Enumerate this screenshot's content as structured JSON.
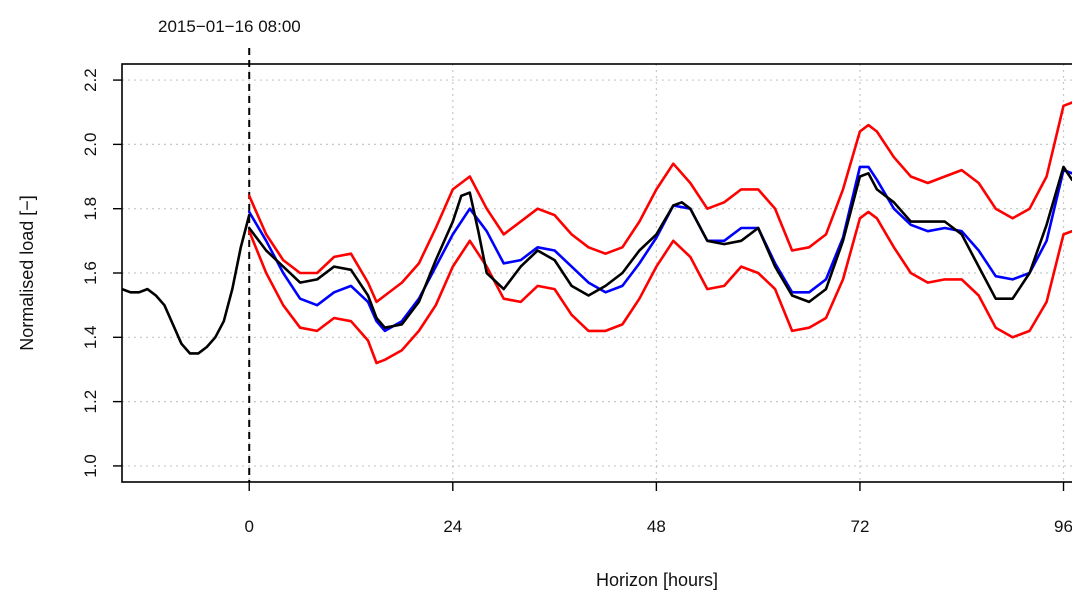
{
  "chart_data": {
    "type": "line",
    "title": "",
    "annotation": "2015−01−16 08:00",
    "xlabel": "Horizon [hours]",
    "ylabel": "Normalised load [−]",
    "xlim": [
      -15,
      97
    ],
    "ylim": [
      0.95,
      2.25
    ],
    "xticks": [
      0,
      24,
      48,
      72,
      96
    ],
    "yticks": [
      1.0,
      1.2,
      1.4,
      1.6,
      1.8,
      2.0,
      2.2
    ],
    "grid": true,
    "vline_at": 0,
    "series": [
      {
        "role": "history",
        "color": "#000000",
        "x": [
          -16,
          -15,
          -14,
          -13,
          -12,
          -11,
          -10,
          -9,
          -8,
          -7,
          -6,
          -5,
          -4,
          -3,
          -2,
          -1,
          0
        ],
        "y": [
          1.56,
          1.55,
          1.54,
          1.54,
          1.55,
          1.53,
          1.5,
          1.44,
          1.38,
          1.35,
          1.35,
          1.37,
          1.4,
          1.45,
          1.55,
          1.68,
          1.78
        ]
      },
      {
        "role": "observed",
        "color": "#000000",
        "x": [
          0,
          2,
          4,
          6,
          8,
          10,
          12,
          14,
          15,
          16,
          18,
          20,
          22,
          24,
          25,
          26,
          27,
          28,
          30,
          32,
          34,
          36,
          38,
          40,
          42,
          44,
          46,
          48,
          50,
          51,
          52,
          54,
          56,
          58,
          60,
          62,
          64,
          66,
          68,
          70,
          72,
          73,
          74,
          76,
          78,
          80,
          82,
          84,
          86,
          88,
          90,
          92,
          94,
          96,
          97
        ],
        "y": [
          1.74,
          1.67,
          1.62,
          1.57,
          1.58,
          1.62,
          1.61,
          1.53,
          1.46,
          1.43,
          1.44,
          1.51,
          1.64,
          1.76,
          1.84,
          1.85,
          1.73,
          1.6,
          1.55,
          1.62,
          1.67,
          1.64,
          1.56,
          1.53,
          1.56,
          1.6,
          1.67,
          1.72,
          1.81,
          1.82,
          1.8,
          1.7,
          1.69,
          1.7,
          1.74,
          1.62,
          1.53,
          1.51,
          1.55,
          1.7,
          1.9,
          1.91,
          1.86,
          1.82,
          1.76,
          1.76,
          1.76,
          1.72,
          1.62,
          1.52,
          1.52,
          1.6,
          1.75,
          1.93,
          1.89
        ]
      },
      {
        "role": "forecast",
        "color": "#0000ff",
        "x": [
          0,
          2,
          4,
          6,
          8,
          10,
          12,
          14,
          15,
          16,
          18,
          20,
          22,
          24,
          26,
          28,
          30,
          32,
          34,
          36,
          38,
          40,
          42,
          44,
          46,
          48,
          50,
          52,
          54,
          56,
          58,
          60,
          62,
          64,
          66,
          68,
          70,
          72,
          73,
          74,
          76,
          78,
          80,
          82,
          84,
          86,
          88,
          90,
          92,
          94,
          96,
          97
        ],
        "y": [
          1.79,
          1.7,
          1.6,
          1.52,
          1.5,
          1.54,
          1.56,
          1.51,
          1.45,
          1.42,
          1.45,
          1.52,
          1.62,
          1.72,
          1.8,
          1.73,
          1.63,
          1.64,
          1.68,
          1.67,
          1.62,
          1.57,
          1.54,
          1.56,
          1.63,
          1.71,
          1.81,
          1.8,
          1.7,
          1.7,
          1.74,
          1.74,
          1.63,
          1.54,
          1.54,
          1.58,
          1.71,
          1.93,
          1.93,
          1.89,
          1.8,
          1.75,
          1.73,
          1.74,
          1.73,
          1.67,
          1.59,
          1.58,
          1.6,
          1.7,
          1.92,
          1.91
        ]
      },
      {
        "role": "upper-bound",
        "color": "#ff0000",
        "x": [
          0,
          2,
          4,
          6,
          8,
          10,
          12,
          14,
          15,
          16,
          18,
          20,
          22,
          24,
          26,
          28,
          30,
          32,
          34,
          36,
          38,
          40,
          42,
          44,
          46,
          48,
          50,
          52,
          54,
          56,
          58,
          60,
          62,
          64,
          66,
          68,
          70,
          72,
          73,
          74,
          76,
          78,
          80,
          82,
          84,
          86,
          88,
          90,
          92,
          94,
          96,
          97
        ],
        "y": [
          1.84,
          1.72,
          1.64,
          1.6,
          1.6,
          1.65,
          1.66,
          1.57,
          1.51,
          1.53,
          1.57,
          1.63,
          1.74,
          1.86,
          1.9,
          1.8,
          1.72,
          1.76,
          1.8,
          1.78,
          1.72,
          1.68,
          1.66,
          1.68,
          1.76,
          1.86,
          1.94,
          1.88,
          1.8,
          1.82,
          1.86,
          1.86,
          1.8,
          1.67,
          1.68,
          1.72,
          1.86,
          2.04,
          2.06,
          2.04,
          1.96,
          1.9,
          1.88,
          1.9,
          1.92,
          1.88,
          1.8,
          1.77,
          1.8,
          1.9,
          2.12,
          2.13
        ]
      },
      {
        "role": "lower-bound",
        "color": "#ff0000",
        "x": [
          0,
          2,
          4,
          6,
          8,
          10,
          12,
          14,
          15,
          16,
          18,
          20,
          22,
          24,
          26,
          28,
          30,
          32,
          34,
          36,
          38,
          40,
          42,
          44,
          46,
          48,
          50,
          52,
          54,
          56,
          58,
          60,
          62,
          64,
          66,
          68,
          70,
          72,
          73,
          74,
          76,
          78,
          80,
          82,
          84,
          86,
          88,
          90,
          92,
          94,
          96,
          97
        ],
        "y": [
          1.73,
          1.6,
          1.5,
          1.43,
          1.42,
          1.46,
          1.45,
          1.39,
          1.32,
          1.33,
          1.36,
          1.42,
          1.5,
          1.62,
          1.7,
          1.62,
          1.52,
          1.51,
          1.56,
          1.55,
          1.47,
          1.42,
          1.42,
          1.44,
          1.52,
          1.62,
          1.7,
          1.65,
          1.55,
          1.56,
          1.62,
          1.6,
          1.55,
          1.42,
          1.43,
          1.46,
          1.58,
          1.77,
          1.79,
          1.77,
          1.68,
          1.6,
          1.57,
          1.58,
          1.58,
          1.53,
          1.43,
          1.4,
          1.42,
          1.51,
          1.72,
          1.73
        ]
      }
    ]
  }
}
